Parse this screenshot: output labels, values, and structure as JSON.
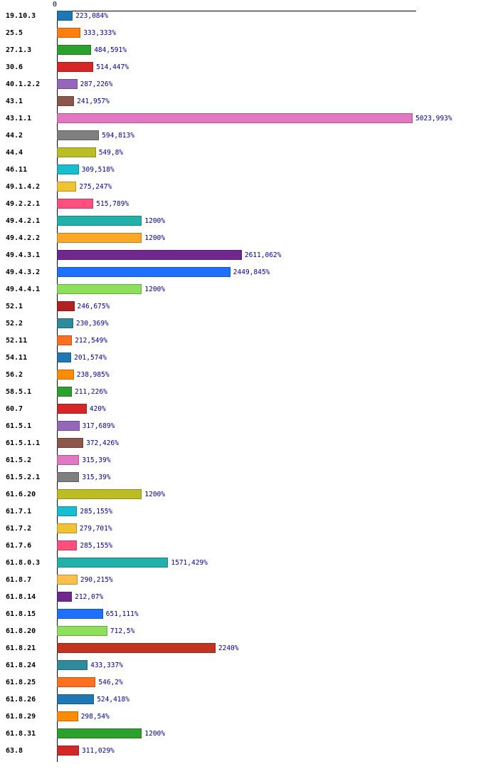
{
  "chart_data": {
    "type": "bar",
    "orientation": "horizontal",
    "title": "",
    "xlabel": "",
    "ylabel": "",
    "grid": false,
    "legend": null,
    "axis_color": "#000000",
    "category_label_color": "#000000",
    "value_label_color": "#00008c",
    "x_axis": {
      "origin_label": "0",
      "min": 0,
      "max": 5023.993
    },
    "rows": [
      {
        "category": "19.10.3",
        "value": 223.084,
        "label": "223,084%",
        "color": "#1f77b4"
      },
      {
        "category": "25.5",
        "value": 333.333,
        "label": "333,333%",
        "color": "#ff7f0e"
      },
      {
        "category": "27.1.3",
        "value": 484.591,
        "label": "484,591%",
        "color": "#2ca02c"
      },
      {
        "category": "30.6",
        "value": 514.447,
        "label": "514,447%",
        "color": "#d62728"
      },
      {
        "category": "40.1.2.2",
        "value": 287.226,
        "label": "287,226%",
        "color": "#9467bd"
      },
      {
        "category": "43.1",
        "value": 241.957,
        "label": "241,957%",
        "color": "#8c564b"
      },
      {
        "category": "43.1.1",
        "value": 5023.993,
        "label": "5023,993%",
        "color": "#e377c2"
      },
      {
        "category": "44.2",
        "value": 594.813,
        "label": "594,813%",
        "color": "#7f7f7f"
      },
      {
        "category": "44.4",
        "value": 549.8,
        "label": "549,8%",
        "color": "#bcbd22"
      },
      {
        "category": "46.11",
        "value": 309.518,
        "label": "309,518%",
        "color": "#17becf"
      },
      {
        "category": "49.1.4.2",
        "value": 275.247,
        "label": "275,247%",
        "color": "#f1c232"
      },
      {
        "category": "49.2.2.1",
        "value": 515.789,
        "label": "515,789%",
        "color": "#ff4f7e"
      },
      {
        "category": "49.4.2.1",
        "value": 1200,
        "label": "1200%",
        "color": "#20b2aa"
      },
      {
        "category": "49.4.2.2",
        "value": 1200,
        "label": "1200%",
        "color": "#ffa827"
      },
      {
        "category": "49.4.3.1",
        "value": 2611.062,
        "label": "2611,062%",
        "color": "#71288e"
      },
      {
        "category": "49.4.3.2",
        "value": 2449.845,
        "label": "2449,845%",
        "color": "#1e70ff"
      },
      {
        "category": "49.4.4.1",
        "value": 1200,
        "label": "1200%",
        "color": "#8de05a"
      },
      {
        "category": "52.1",
        "value": 246.675,
        "label": "246,675%",
        "color": "#b22222"
      },
      {
        "category": "52.2",
        "value": 230.369,
        "label": "230,369%",
        "color": "#2e8b9b"
      },
      {
        "category": "52.11",
        "value": 212.549,
        "label": "212,549%",
        "color": "#ff6f20"
      },
      {
        "category": "54.11",
        "value": 201.574,
        "label": "201,574%",
        "color": "#1f77b4"
      },
      {
        "category": "56.2",
        "value": 238.985,
        "label": "238,985%",
        "color": "#ff8c00"
      },
      {
        "category": "58.5.1",
        "value": 211.226,
        "label": "211,226%",
        "color": "#2ca02c"
      },
      {
        "category": "60.7",
        "value": 420,
        "label": "420%",
        "color": "#d62728"
      },
      {
        "category": "61.5.1",
        "value": 317.689,
        "label": "317,689%",
        "color": "#9467bd"
      },
      {
        "category": "61.5.1.1",
        "value": 372.426,
        "label": "372,426%",
        "color": "#8c564b"
      },
      {
        "category": "61.5.2",
        "value": 315.39,
        "label": "315,39%",
        "color": "#e377c2"
      },
      {
        "category": "61.5.2.1",
        "value": 315.39,
        "label": "315,39%",
        "color": "#7f7f7f"
      },
      {
        "category": "61.6.20",
        "value": 1200,
        "label": "1200%",
        "color": "#bcbd22"
      },
      {
        "category": "61.7.1",
        "value": 285.155,
        "label": "285,155%",
        "color": "#17becf"
      },
      {
        "category": "61.7.2",
        "value": 279.701,
        "label": "279,701%",
        "color": "#f1c232"
      },
      {
        "category": "61.7.6",
        "value": 285.155,
        "label": "285,155%",
        "color": "#ff4f7e"
      },
      {
        "category": "61.8.0.3",
        "value": 1571.429,
        "label": "1571,429%",
        "color": "#20b2aa"
      },
      {
        "category": "61.8.7",
        "value": 290.215,
        "label": "290,215%",
        "color": "#fdc14b"
      },
      {
        "category": "61.8.14",
        "value": 212.07,
        "label": "212,07%",
        "color": "#71288e"
      },
      {
        "category": "61.8.15",
        "value": 651.111,
        "label": "651,111%",
        "color": "#1e70ff"
      },
      {
        "category": "61.8.20",
        "value": 712.5,
        "label": "712,5%",
        "color": "#8de05a"
      },
      {
        "category": "61.8.21",
        "value": 2240,
        "label": "2240%",
        "color": "#c1341f"
      },
      {
        "category": "61.8.24",
        "value": 433.337,
        "label": "433,337%",
        "color": "#2e8b9b"
      },
      {
        "category": "61.8.25",
        "value": 546.2,
        "label": "546,2%",
        "color": "#ff6f20"
      },
      {
        "category": "61.8.26",
        "value": 524.418,
        "label": "524,418%",
        "color": "#1f77b4"
      },
      {
        "category": "61.8.29",
        "value": 298.54,
        "label": "298,54%",
        "color": "#ff8c00"
      },
      {
        "category": "61.8.31",
        "value": 1200,
        "label": "1200%",
        "color": "#2ca02c"
      },
      {
        "category": "63.8",
        "value": 311.029,
        "label": "311,029%",
        "color": "#d62728"
      }
    ]
  }
}
